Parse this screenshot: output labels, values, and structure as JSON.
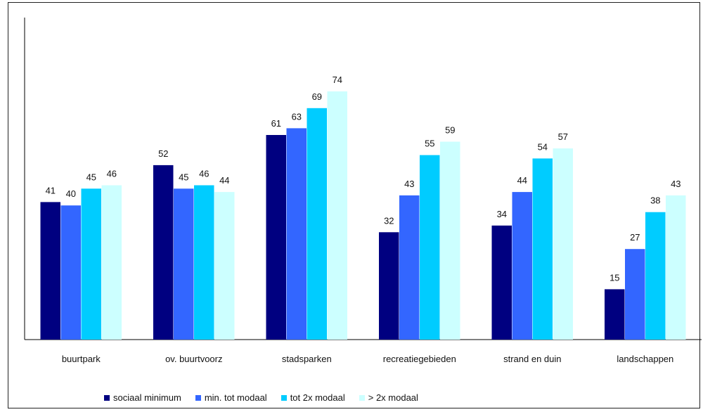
{
  "chart_data": {
    "type": "bar",
    "categories": [
      "buurtpark",
      "ov. buurtvoorz",
      "stadsparken",
      "recreatiegebieden",
      "strand en duin",
      "landschappen"
    ],
    "series": [
      {
        "name": "sociaal minimum",
        "color": "#000080",
        "values": [
          41,
          52,
          61,
          32,
          34,
          15
        ]
      },
      {
        "name": "min. tot modaal",
        "color": "#3366FF",
        "values": [
          40,
          45,
          63,
          43,
          44,
          27
        ]
      },
      {
        "name": "tot 2x modaal",
        "color": "#00CCFF",
        "values": [
          45,
          46,
          69,
          55,
          54,
          38
        ]
      },
      {
        "name": "> 2x modaal",
        "color": "#CCFFFF",
        "values": [
          46,
          44,
          74,
          59,
          57,
          43
        ]
      }
    ],
    "ylim": [
      0,
      96
    ],
    "grid": false,
    "legend_position": "bottom"
  }
}
